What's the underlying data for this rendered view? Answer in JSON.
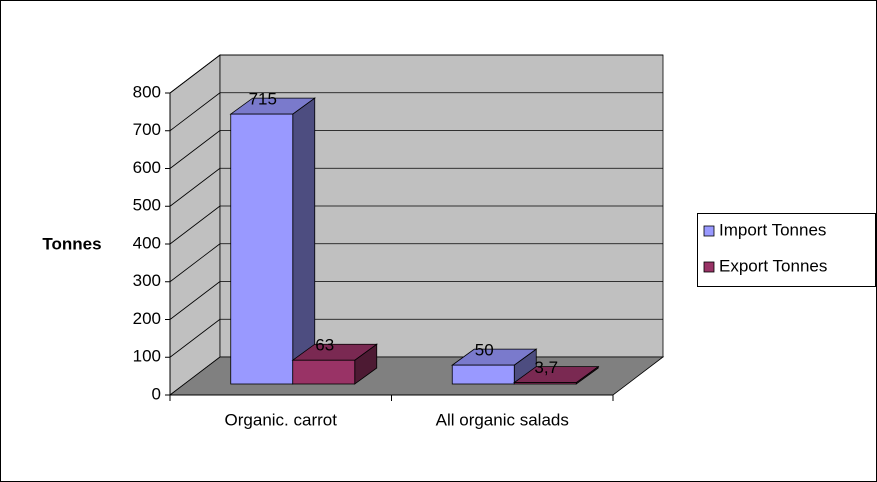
{
  "chart_data": {
    "type": "bar3d",
    "y_label": "Tonnes",
    "categories": [
      "Organic. carrot",
      "All organic salads"
    ],
    "series": [
      {
        "name": "Import Tonnes",
        "color": "#9999ff",
        "values": [
          715,
          50
        ]
      },
      {
        "name": "Export Tonnes",
        "color": "#993366",
        "values": [
          63,
          3.7
        ],
        "value_labels": [
          "63",
          "3,7"
        ]
      }
    ],
    "ylim": [
      0,
      800
    ],
    "yticks": [
      0,
      100,
      200,
      300,
      400,
      500,
      600,
      700,
      800
    ],
    "grid": true,
    "legend": "right"
  }
}
